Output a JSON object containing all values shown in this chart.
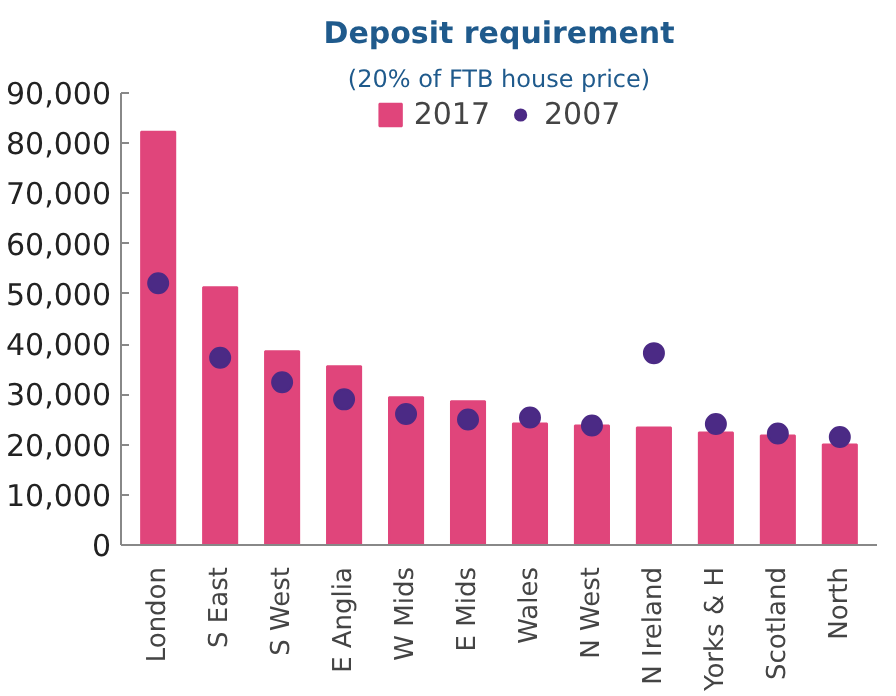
{
  "chart_data": {
    "type": "bar",
    "title": "Deposit requirement",
    "subtitle": "(20% of FTB house price)",
    "categories": [
      "London",
      "S East",
      "S West",
      "E Anglia",
      "W Mids",
      "E Mids",
      "Wales",
      "N West",
      "N Ireland",
      "Yorks & H",
      "Scotland",
      "North"
    ],
    "series": [
      {
        "name": "2017",
        "color": "#e0457b",
        "values": [
          82300,
          51300,
          38600,
          35600,
          29400,
          28600,
          24200,
          23800,
          23400,
          22400,
          21800,
          20000
        ]
      },
      {
        "name": "2007",
        "type": "scatter",
        "color": "#4b2a85",
        "values": [
          52100,
          37300,
          32400,
          29000,
          26100,
          25000,
          25400,
          23800,
          38200,
          24100,
          22200,
          21500
        ]
      }
    ],
    "ylim": [
      0,
      90000
    ],
    "yticks": [
      {
        "value": 0,
        "label": "0"
      },
      {
        "value": 10000,
        "label": "10,000"
      },
      {
        "value": 20000,
        "label": "20,000"
      },
      {
        "value": 30000,
        "label": "30,000"
      },
      {
        "value": 40000,
        "label": "40,000"
      },
      {
        "value": 50000,
        "label": "50,000"
      },
      {
        "value": 60000,
        "label": "60,000"
      },
      {
        "value": 70000,
        "label": "70,000"
      },
      {
        "value": 80000,
        "label": "80,000"
      },
      {
        "value": 90000,
        "label": "90,000"
      }
    ],
    "legend": "top",
    "grid": false,
    "marker": "circle"
  }
}
